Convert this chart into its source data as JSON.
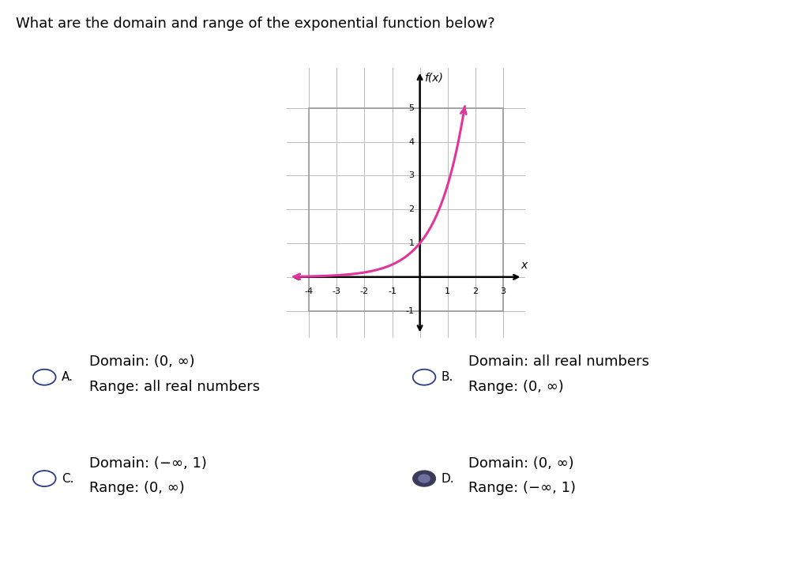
{
  "title": "What are the domain and range of the exponential function below?",
  "title_fontsize": 13,
  "graph_xlim": [
    -4.8,
    3.8
  ],
  "graph_ylim": [
    -1.8,
    6.2
  ],
  "x_ticks": [
    -4,
    -3,
    -2,
    -1,
    1,
    2,
    3
  ],
  "y_ticks": [
    -1,
    1,
    2,
    3,
    4,
    5
  ],
  "curve_color": "#e0359a",
  "axis_label_x": "x",
  "axis_label_y": "f(x)",
  "options": [
    {
      "label": "A.",
      "line1": "Domain: (0, ∞)",
      "line2": "Range: all real numbers",
      "filled": false,
      "selected": false
    },
    {
      "label": "B.",
      "line1": "Domain: all real numbers",
      "line2": "Range: (0, ∞)",
      "filled": false,
      "selected": false
    },
    {
      "label": "C.",
      "line1": "Domain: (−∞, 1)",
      "line2": "Range: (0, ∞)",
      "filled": false,
      "selected": false
    },
    {
      "label": "D.",
      "line1": "Domain: (0, ∞)",
      "line2": "Range: (−∞, 1)",
      "filled": true,
      "selected": true
    }
  ],
  "option_fontsize": 13,
  "bg_color": "#ffffff",
  "circle_color_empty": "#2a3a8a",
  "circle_color_filled": "#3a3a5a"
}
